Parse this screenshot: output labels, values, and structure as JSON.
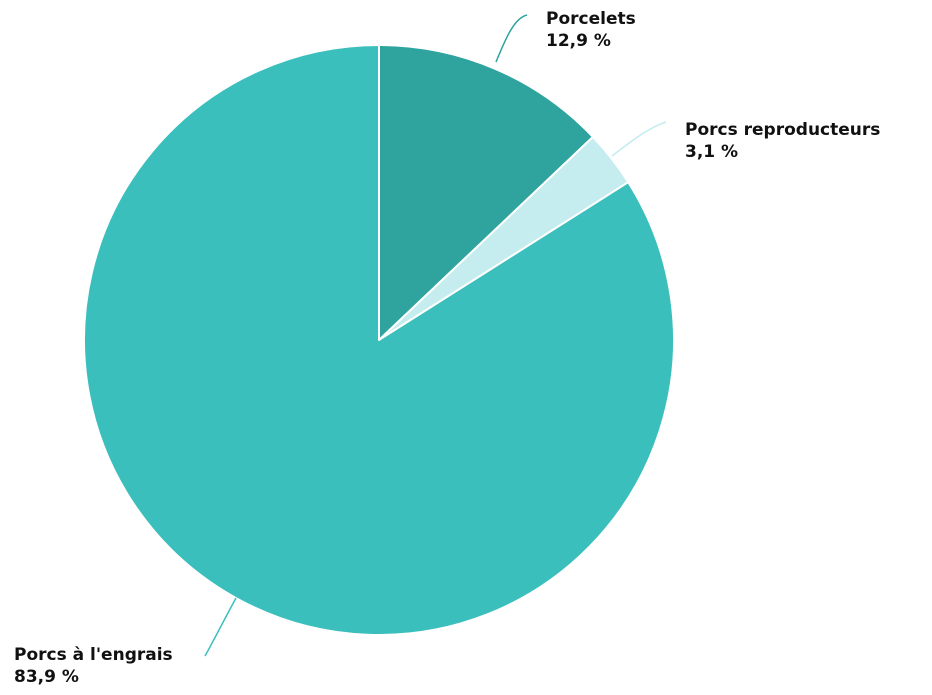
{
  "chart_data": {
    "type": "pie",
    "start_angle_deg": 0,
    "direction": "clockwise",
    "slices": [
      {
        "name": "Porcelets",
        "value": 12.9,
        "label": "12,9 %",
        "color": "#2fa39e"
      },
      {
        "name": "Porcs reproducteurs",
        "value": 3.1,
        "label": "3,1 %",
        "color": "#c5ecee"
      },
      {
        "name": "Porcs à l'engrais",
        "value": 83.9,
        "label": "83,9 %",
        "color": "#3bbfbd"
      }
    ],
    "slice_border_color": "#ffffff",
    "legend": "none",
    "labels": "outside-with-leader-lines"
  }
}
